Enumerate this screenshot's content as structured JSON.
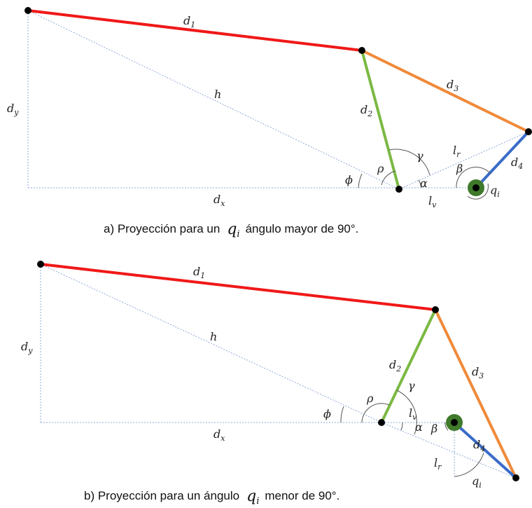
{
  "diagram_a": {
    "caption_before": "a) Proyección para un",
    "caption_symbol": "q",
    "caption_symbol_sub": "i",
    "caption_after": "ángulo mayor de 90°.",
    "labels": {
      "d1": "d",
      "d1_sub": "1",
      "d2": "d",
      "d2_sub": "2",
      "d3": "d",
      "d3_sub": "3",
      "d4": "d",
      "d4_sub": "4",
      "dx": "d",
      "dx_sub": "x",
      "dy": "d",
      "dy_sub": "y",
      "h": "h",
      "lr": "l",
      "lr_sub": "r",
      "lv": "l",
      "lv_sub": "v",
      "qi": "q",
      "qi_sub": "i",
      "phi": "ϕ",
      "rho": "ρ",
      "gamma": "γ",
      "alpha": "α",
      "beta": "β"
    }
  },
  "diagram_b": {
    "caption_before": "b) Proyección para un ángulo",
    "caption_symbol": "q",
    "caption_symbol_sub": "i",
    "caption_after": "menor de 90°.",
    "labels": {
      "d1": "d",
      "d1_sub": "1",
      "d2": "d",
      "d2_sub": "2",
      "d3": "d",
      "d3_sub": "3",
      "d4": "d",
      "d4_sub": "4",
      "dx": "d",
      "dx_sub": "x",
      "dy": "d",
      "dy_sub": "y",
      "h": "h",
      "lr": "l",
      "lr_sub": "r",
      "lv": "l",
      "lv_sub": "v",
      "qi": "q",
      "qi_sub": "i",
      "phi": "ϕ",
      "rho": "ρ",
      "gamma": "γ",
      "alpha": "α",
      "beta": "β"
    }
  },
  "colors": {
    "d1": "#f01818",
    "d2": "#7cb944",
    "d3": "#f08a3a",
    "d4": "#3a6cc8",
    "joint": "#000000",
    "base_ring": "#3f7a2a"
  }
}
